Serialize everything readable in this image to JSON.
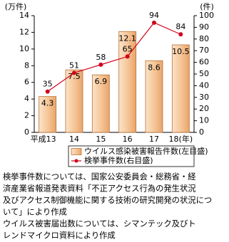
{
  "chart_data": {
    "type": "bar-line",
    "y_label": "(万件)",
    "y2_label": "(件)",
    "categories": [
      "平成13",
      "14",
      "15",
      "16",
      "17",
      "18(年)"
    ],
    "series": [
      {
        "name": "ウイルス感染被害報告件数(左目盛)",
        "type": "bar",
        "color": "#f6c79a",
        "values": [
          4.3,
          7.5,
          6.9,
          12.1,
          8.6,
          10.5
        ]
      },
      {
        "name": "検挙事件数(右目盛)",
        "type": "line",
        "axis": "y2",
        "color": "#d0021b",
        "values": [
          35,
          51,
          58,
          65,
          94,
          84
        ]
      }
    ],
    "ylim": [
      0,
      14
    ],
    "yticks": [
      0,
      2,
      4,
      6,
      8,
      10,
      12,
      14
    ],
    "y2lim": [
      0,
      100
    ],
    "y2ticks": [
      0,
      10,
      20,
      30,
      40,
      50,
      60,
      70,
      80,
      90,
      100
    ],
    "grid": false
  },
  "notes": [
    "検挙事件数については、国家公安委員会・総務省・経",
    "済産業省報道発表資料「不正アクセス行為の発生状況",
    "及びアクセス制御機能に関する技術の研究開発の状況につ",
    "いて」により作成",
    "ウイルス被害届出数については、シマンテック及びト",
    "レンドマイクロ資料により作成"
  ]
}
